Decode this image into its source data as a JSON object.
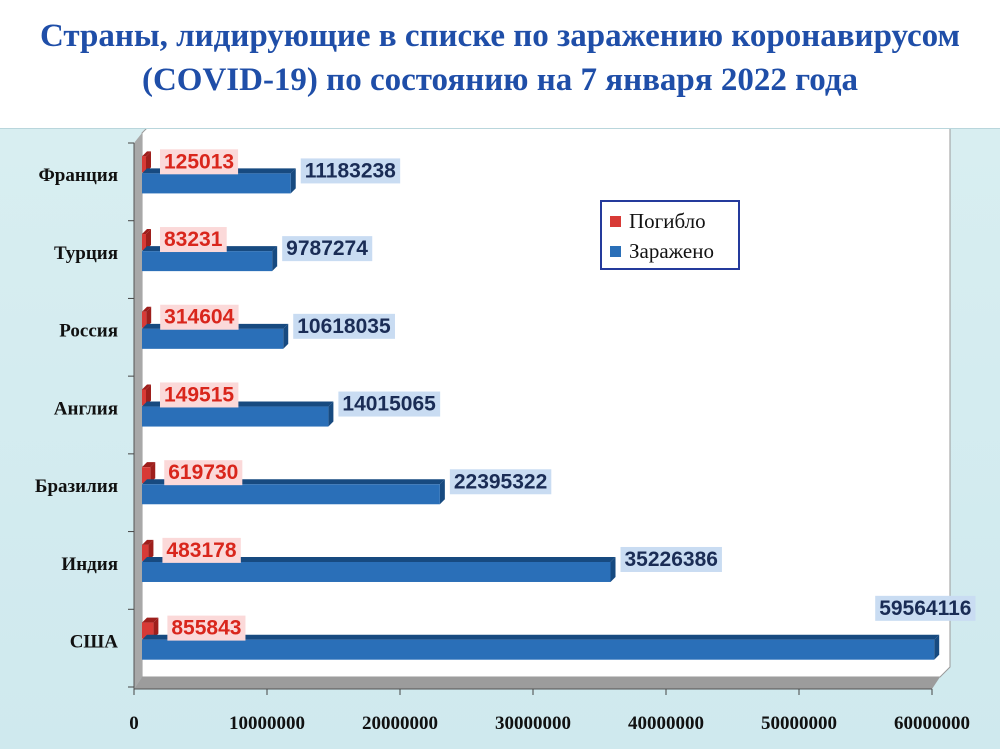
{
  "title_lines": [
    "Страны, лидирующие в списке по заражению коронавирусом",
    "(COVID-19) по состоянию на 7 января 2022 года"
  ],
  "colors": {
    "dead": "#d83a36",
    "dead_dark": "#9e1f1c",
    "infected": "#2a6fb8",
    "infected_dark": "#174a80",
    "dead_label_bg": "#fbd9d9",
    "infected_label_bg": "#c9dcf2",
    "title": "#1f4ea8"
  },
  "chart_data": {
    "type": "bar",
    "orientation": "horizontal",
    "categories": [
      "США",
      "Индия",
      "Бразилия",
      "Англия",
      "Россия",
      "Турция",
      "Франция"
    ],
    "series": [
      {
        "name": "Погибло",
        "values": [
          855843,
          483178,
          619730,
          149515,
          314604,
          83231,
          125013
        ]
      },
      {
        "name": "Заражено",
        "values": [
          59564116,
          35226386,
          22395322,
          14015065,
          10618035,
          9787274,
          11183238
        ]
      }
    ],
    "xlim": [
      0,
      60000000
    ],
    "xticks": [
      "0",
      "10000000",
      "20000000",
      "30000000",
      "40000000",
      "50000000",
      "60000000"
    ],
    "grid": false,
    "legend": "top-right",
    "legend_order": [
      "Погибло",
      "Заражено"
    ],
    "data_labels": true
  }
}
